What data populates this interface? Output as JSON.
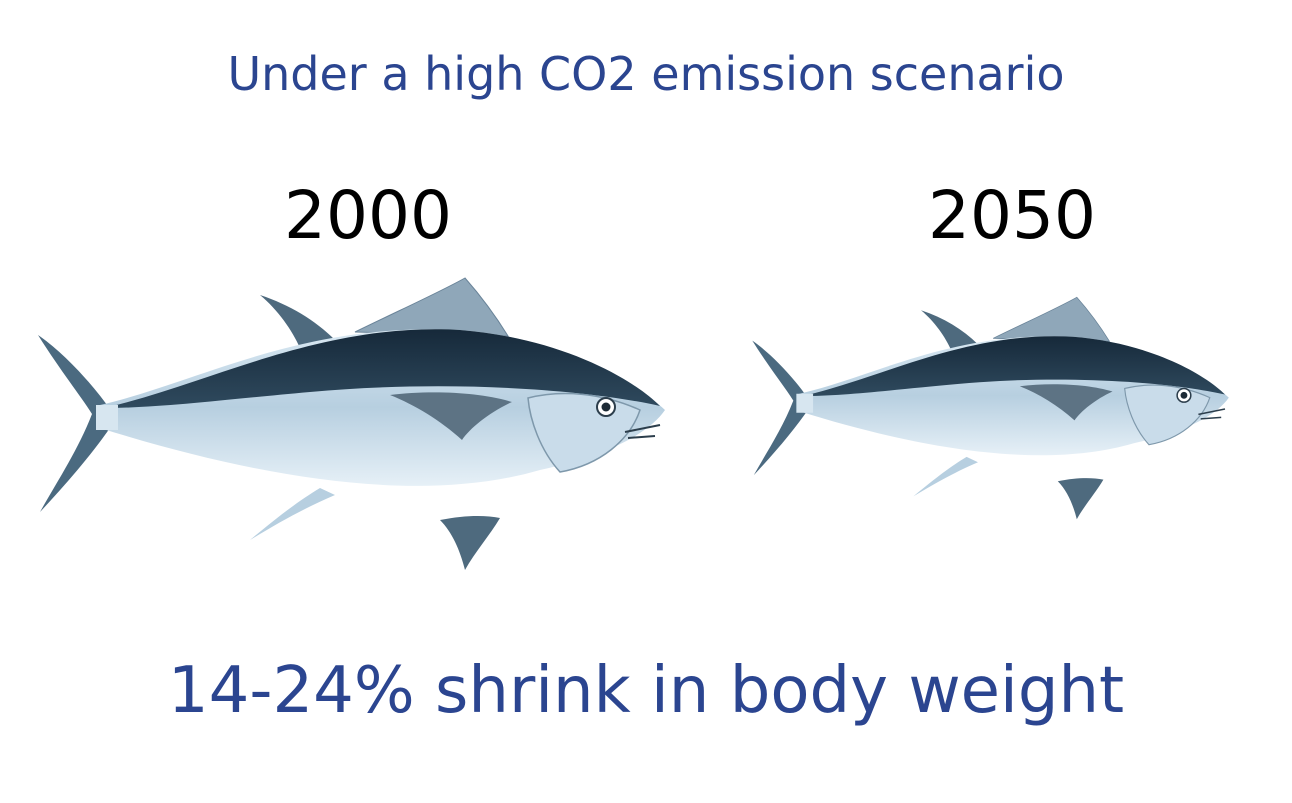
{
  "title": "Under a high CO2 emission scenario",
  "panels": [
    {
      "label": "2000"
    },
    {
      "label": "2050"
    }
  ],
  "caption": "14-24% shrink in body weight"
}
